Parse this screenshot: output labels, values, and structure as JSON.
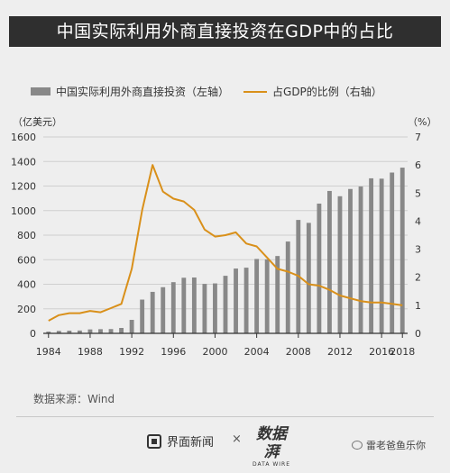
{
  "title": "中国实际利用外商直接投资在GDP中的占比",
  "source": "数据来源：Wind",
  "footer": {
    "brand": "界面新闻",
    "separator": "×",
    "partner": "数据湃",
    "partner_sub": "DATA WIRE",
    "account": "雷老爸鱼乐你"
  },
  "colors": {
    "bar": "#888888",
    "line": "#d9901a",
    "title_bg": "#2f2f2f",
    "background": "#eeeeee"
  },
  "chart_data": {
    "type": "bar",
    "legend": [
      {
        "name": "中国实际利用外商直接投资（左轴）",
        "kind": "bar"
      },
      {
        "name": "占GDP的比例（右轴）",
        "kind": "line"
      }
    ],
    "left_axis_unit": "（亿美元）",
    "right_axis_unit": "（%）",
    "ylim_left": [
      0,
      1600
    ],
    "yticks_left": [
      "0",
      "200",
      "400",
      "600",
      "800",
      "1000",
      "1200",
      "1400",
      "1600"
    ],
    "ylim_right": [
      0,
      7
    ],
    "yticks_right": [
      "0",
      "1",
      "2",
      "3",
      "4",
      "5",
      "6",
      "7"
    ],
    "xlim": [
      1983.5,
      2018.5
    ],
    "xticks": [
      "1984",
      "1988",
      "1992",
      "1996",
      "2000",
      "2004",
      "2008",
      "2012",
      "2016",
      "2018"
    ],
    "x": [
      1984,
      1985,
      1986,
      1987,
      1988,
      1989,
      1990,
      1991,
      1992,
      1993,
      1994,
      1995,
      1996,
      1997,
      1998,
      1999,
      2000,
      2001,
      2002,
      2003,
      2004,
      2005,
      2006,
      2007,
      2008,
      2009,
      2010,
      2011,
      2012,
      2013,
      2014,
      2015,
      2016,
      2017,
      2018
    ],
    "series": [
      {
        "name": "中国实际利用外商直接投资（左轴）",
        "axis": "left",
        "type": "bar",
        "values": [
          14,
          20,
          22,
          23,
          32,
          34,
          35,
          44,
          110,
          275,
          338,
          376,
          417,
          453,
          455,
          403,
          407,
          469,
          528,
          535,
          606,
          603,
          630,
          748,
          924,
          900,
          1057,
          1160,
          1117,
          1176,
          1196,
          1263,
          1260,
          1310,
          1350
        ]
      },
      {
        "name": "占GDP的比例（右轴）",
        "axis": "right",
        "type": "line",
        "values": [
          0.45,
          0.65,
          0.72,
          0.72,
          0.8,
          0.75,
          0.9,
          1.05,
          2.3,
          4.4,
          6.0,
          5.05,
          4.8,
          4.7,
          4.4,
          3.7,
          3.45,
          3.5,
          3.6,
          3.2,
          3.1,
          2.7,
          2.3,
          2.2,
          2.05,
          1.75,
          1.7,
          1.55,
          1.35,
          1.25,
          1.15,
          1.1,
          1.1,
          1.05,
          1.0
        ]
      }
    ]
  }
}
